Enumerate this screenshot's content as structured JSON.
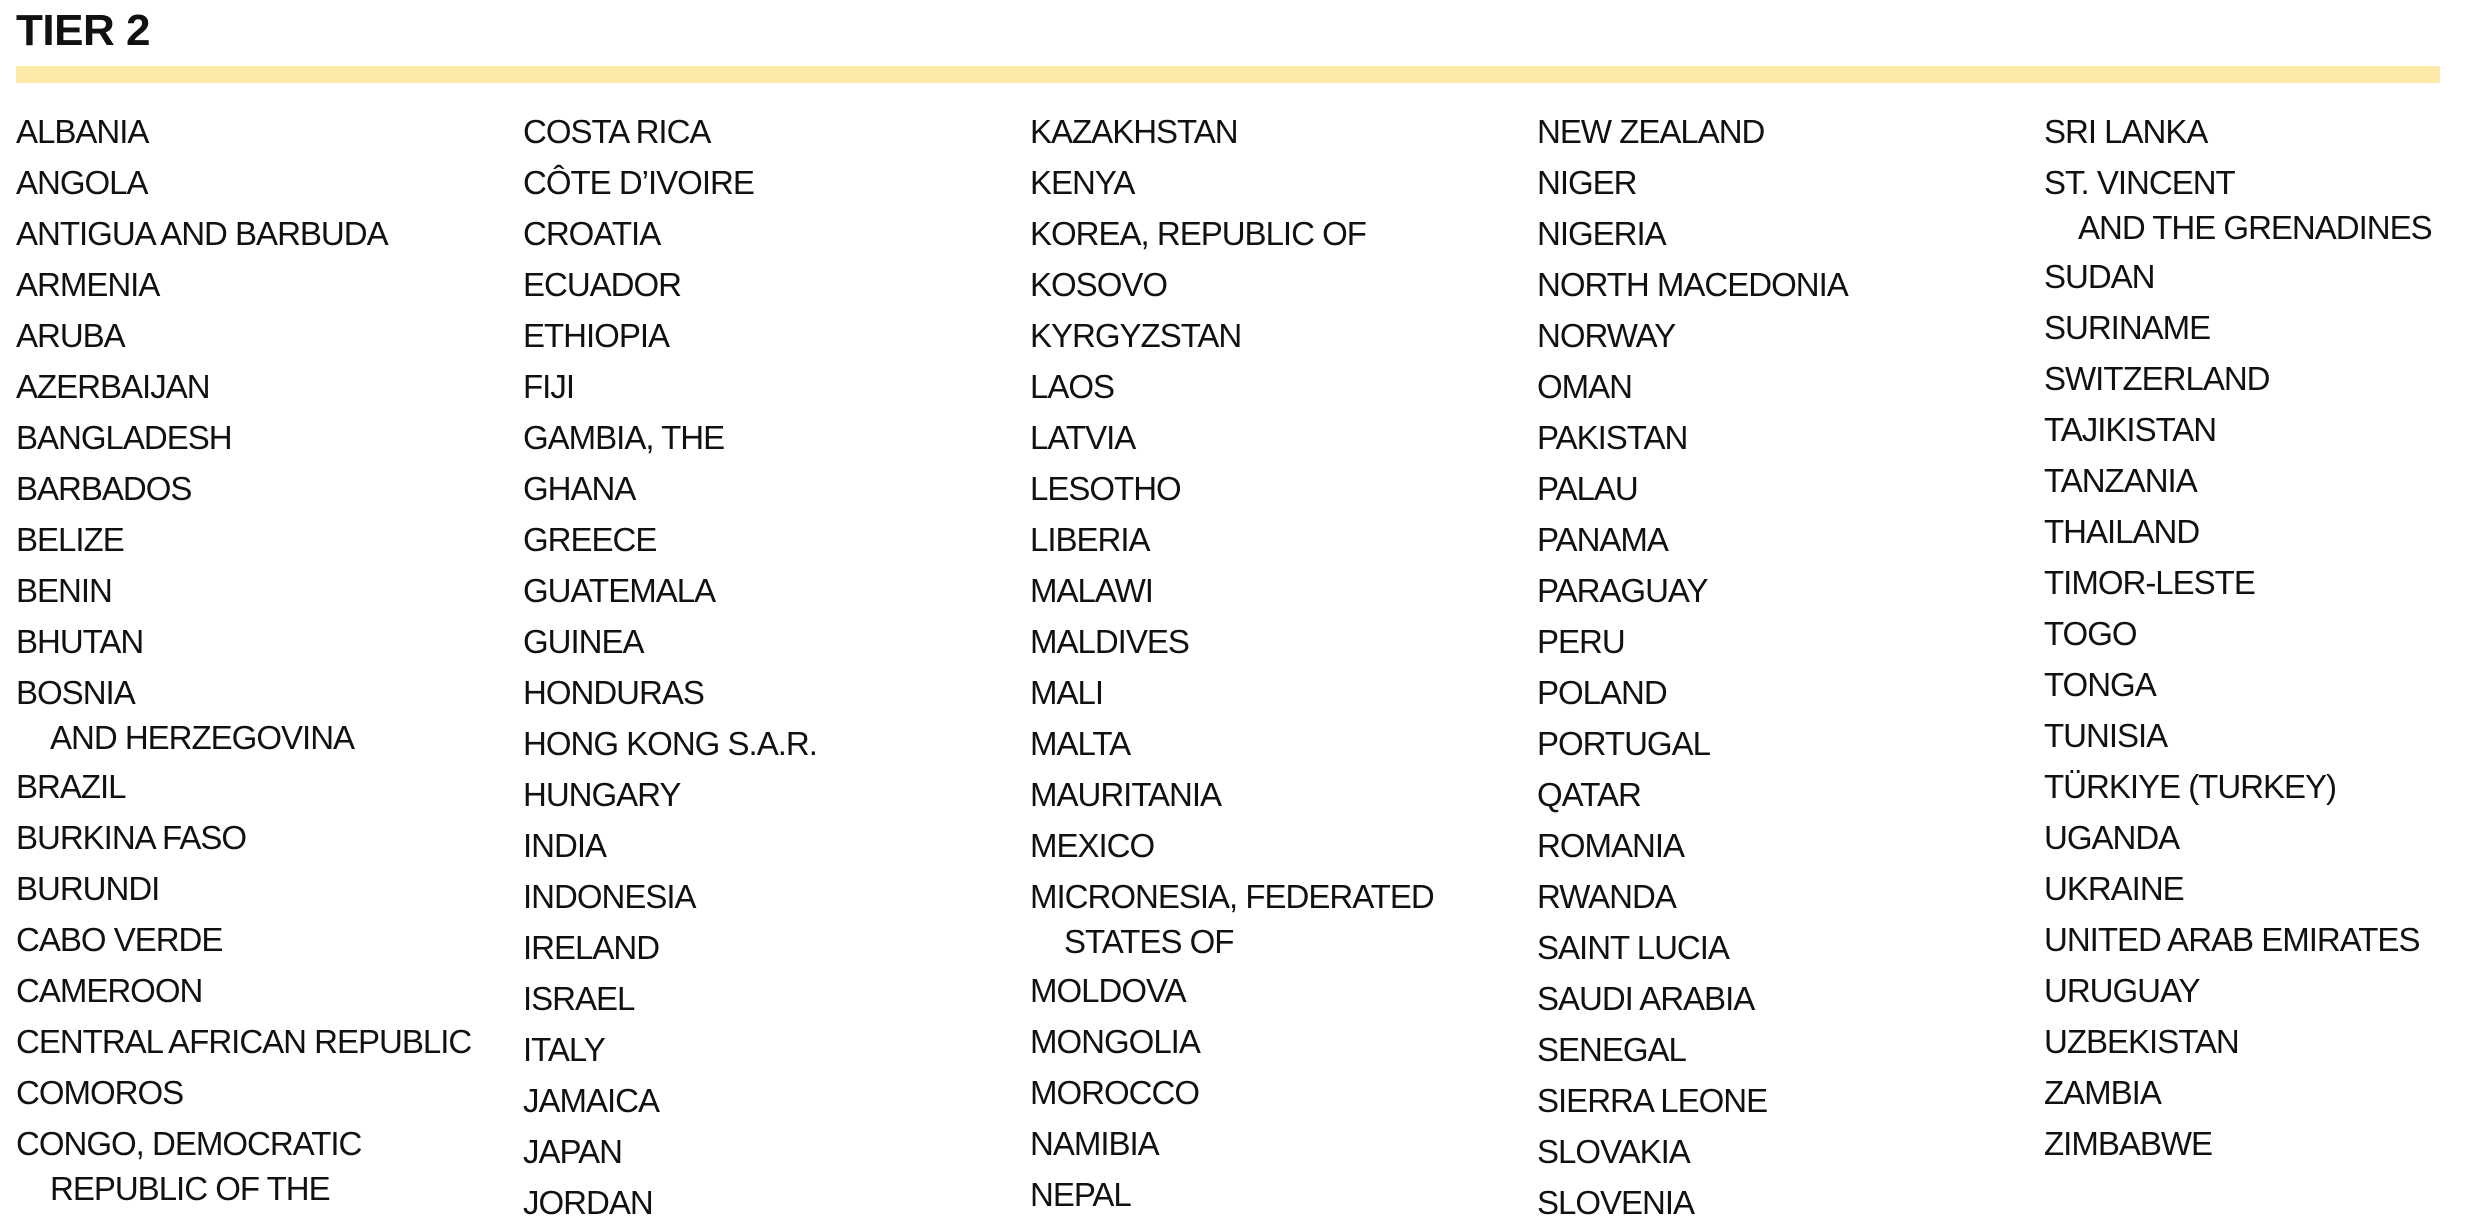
{
  "title": "TIER 2",
  "colors": {
    "accent_bar": "#fdeaa8",
    "text": "#111111"
  },
  "columns": [
    [
      [
        "ALBANIA"
      ],
      [
        "ANGOLA"
      ],
      [
        "ANTIGUA AND BARBUDA"
      ],
      [
        "ARMENIA"
      ],
      [
        "ARUBA"
      ],
      [
        "AZERBAIJAN"
      ],
      [
        "BANGLADESH"
      ],
      [
        "BARBADOS"
      ],
      [
        "BELIZE"
      ],
      [
        "BENIN"
      ],
      [
        "BHUTAN"
      ],
      [
        "BOSNIA",
        "AND HERZEGOVINA"
      ],
      [
        "BRAZIL"
      ],
      [
        "BURKINA FASO"
      ],
      [
        "BURUNDI"
      ],
      [
        "CABO VERDE"
      ],
      [
        "CAMEROON"
      ],
      [
        "CENTRAL AFRICAN REPUBLIC"
      ],
      [
        "COMOROS"
      ],
      [
        "CONGO, DEMOCRATIC",
        "REPUBLIC OF THE"
      ]
    ],
    [
      [
        "COSTA RICA"
      ],
      [
        "CÔTE D’IVOIRE"
      ],
      [
        "CROATIA"
      ],
      [
        "ECUADOR"
      ],
      [
        "ETHIOPIA"
      ],
      [
        "FIJI"
      ],
      [
        "GAMBIA, THE"
      ],
      [
        "GHANA"
      ],
      [
        "GREECE"
      ],
      [
        "GUATEMALA"
      ],
      [
        "GUINEA"
      ],
      [
        "HONDURAS"
      ],
      [
        "HONG KONG S.A.R."
      ],
      [
        "HUNGARY"
      ],
      [
        "INDIA"
      ],
      [
        "INDONESIA"
      ],
      [
        "IRELAND"
      ],
      [
        "ISRAEL"
      ],
      [
        "ITALY"
      ],
      [
        "JAMAICA"
      ],
      [
        "JAPAN"
      ],
      [
        "JORDAN"
      ]
    ],
    [
      [
        "KAZAKHSTAN"
      ],
      [
        "KENYA"
      ],
      [
        "KOREA, REPUBLIC OF"
      ],
      [
        "KOSOVO"
      ],
      [
        "KYRGYZSTAN"
      ],
      [
        "LAOS"
      ],
      [
        "LATVIA"
      ],
      [
        "LESOTHO"
      ],
      [
        "LIBERIA"
      ],
      [
        "MALAWI"
      ],
      [
        "MALDIVES"
      ],
      [
        "MALI"
      ],
      [
        "MALTA"
      ],
      [
        "MAURITANIA"
      ],
      [
        "MEXICO"
      ],
      [
        "MICRONESIA, FEDERATED",
        "STATES OF"
      ],
      [
        "MOLDOVA"
      ],
      [
        "MONGOLIA"
      ],
      [
        "MOROCCO"
      ],
      [
        "NAMIBIA"
      ],
      [
        "NEPAL"
      ]
    ],
    [
      [
        "NEW ZEALAND"
      ],
      [
        "NIGER"
      ],
      [
        "NIGERIA"
      ],
      [
        "NORTH MACEDONIA"
      ],
      [
        "NORWAY"
      ],
      [
        "OMAN"
      ],
      [
        "PAKISTAN"
      ],
      [
        "PALAU"
      ],
      [
        "PANAMA"
      ],
      [
        "PARAGUAY"
      ],
      [
        "PERU"
      ],
      [
        "POLAND"
      ],
      [
        "PORTUGAL"
      ],
      [
        "QATAR"
      ],
      [
        "ROMANIA"
      ],
      [
        "RWANDA"
      ],
      [
        "SAINT LUCIA"
      ],
      [
        "SAUDI ARABIA"
      ],
      [
        "SENEGAL"
      ],
      [
        "SIERRA LEONE"
      ],
      [
        "SLOVAKIA"
      ],
      [
        "SLOVENIA"
      ]
    ],
    [
      [
        "SRI LANKA"
      ],
      [
        "ST. VINCENT",
        "AND THE GRENADINES"
      ],
      [
        "SUDAN"
      ],
      [
        "SURINAME"
      ],
      [
        "SWITZERLAND"
      ],
      [
        "TAJIKISTAN"
      ],
      [
        "TANZANIA"
      ],
      [
        "THAILAND"
      ],
      [
        "TIMOR-LESTE"
      ],
      [
        "TOGO"
      ],
      [
        "TONGA"
      ],
      [
        "TUNISIA"
      ],
      [
        "TÜRKIYE (TURKEY)"
      ],
      [
        "UGANDA"
      ],
      [
        "UKRAINE"
      ],
      [
        "UNITED ARAB EMIRATES"
      ],
      [
        "URUGUAY"
      ],
      [
        "UZBEKISTAN"
      ],
      [
        "ZAMBIA"
      ],
      [
        "ZIMBABWE"
      ]
    ]
  ]
}
